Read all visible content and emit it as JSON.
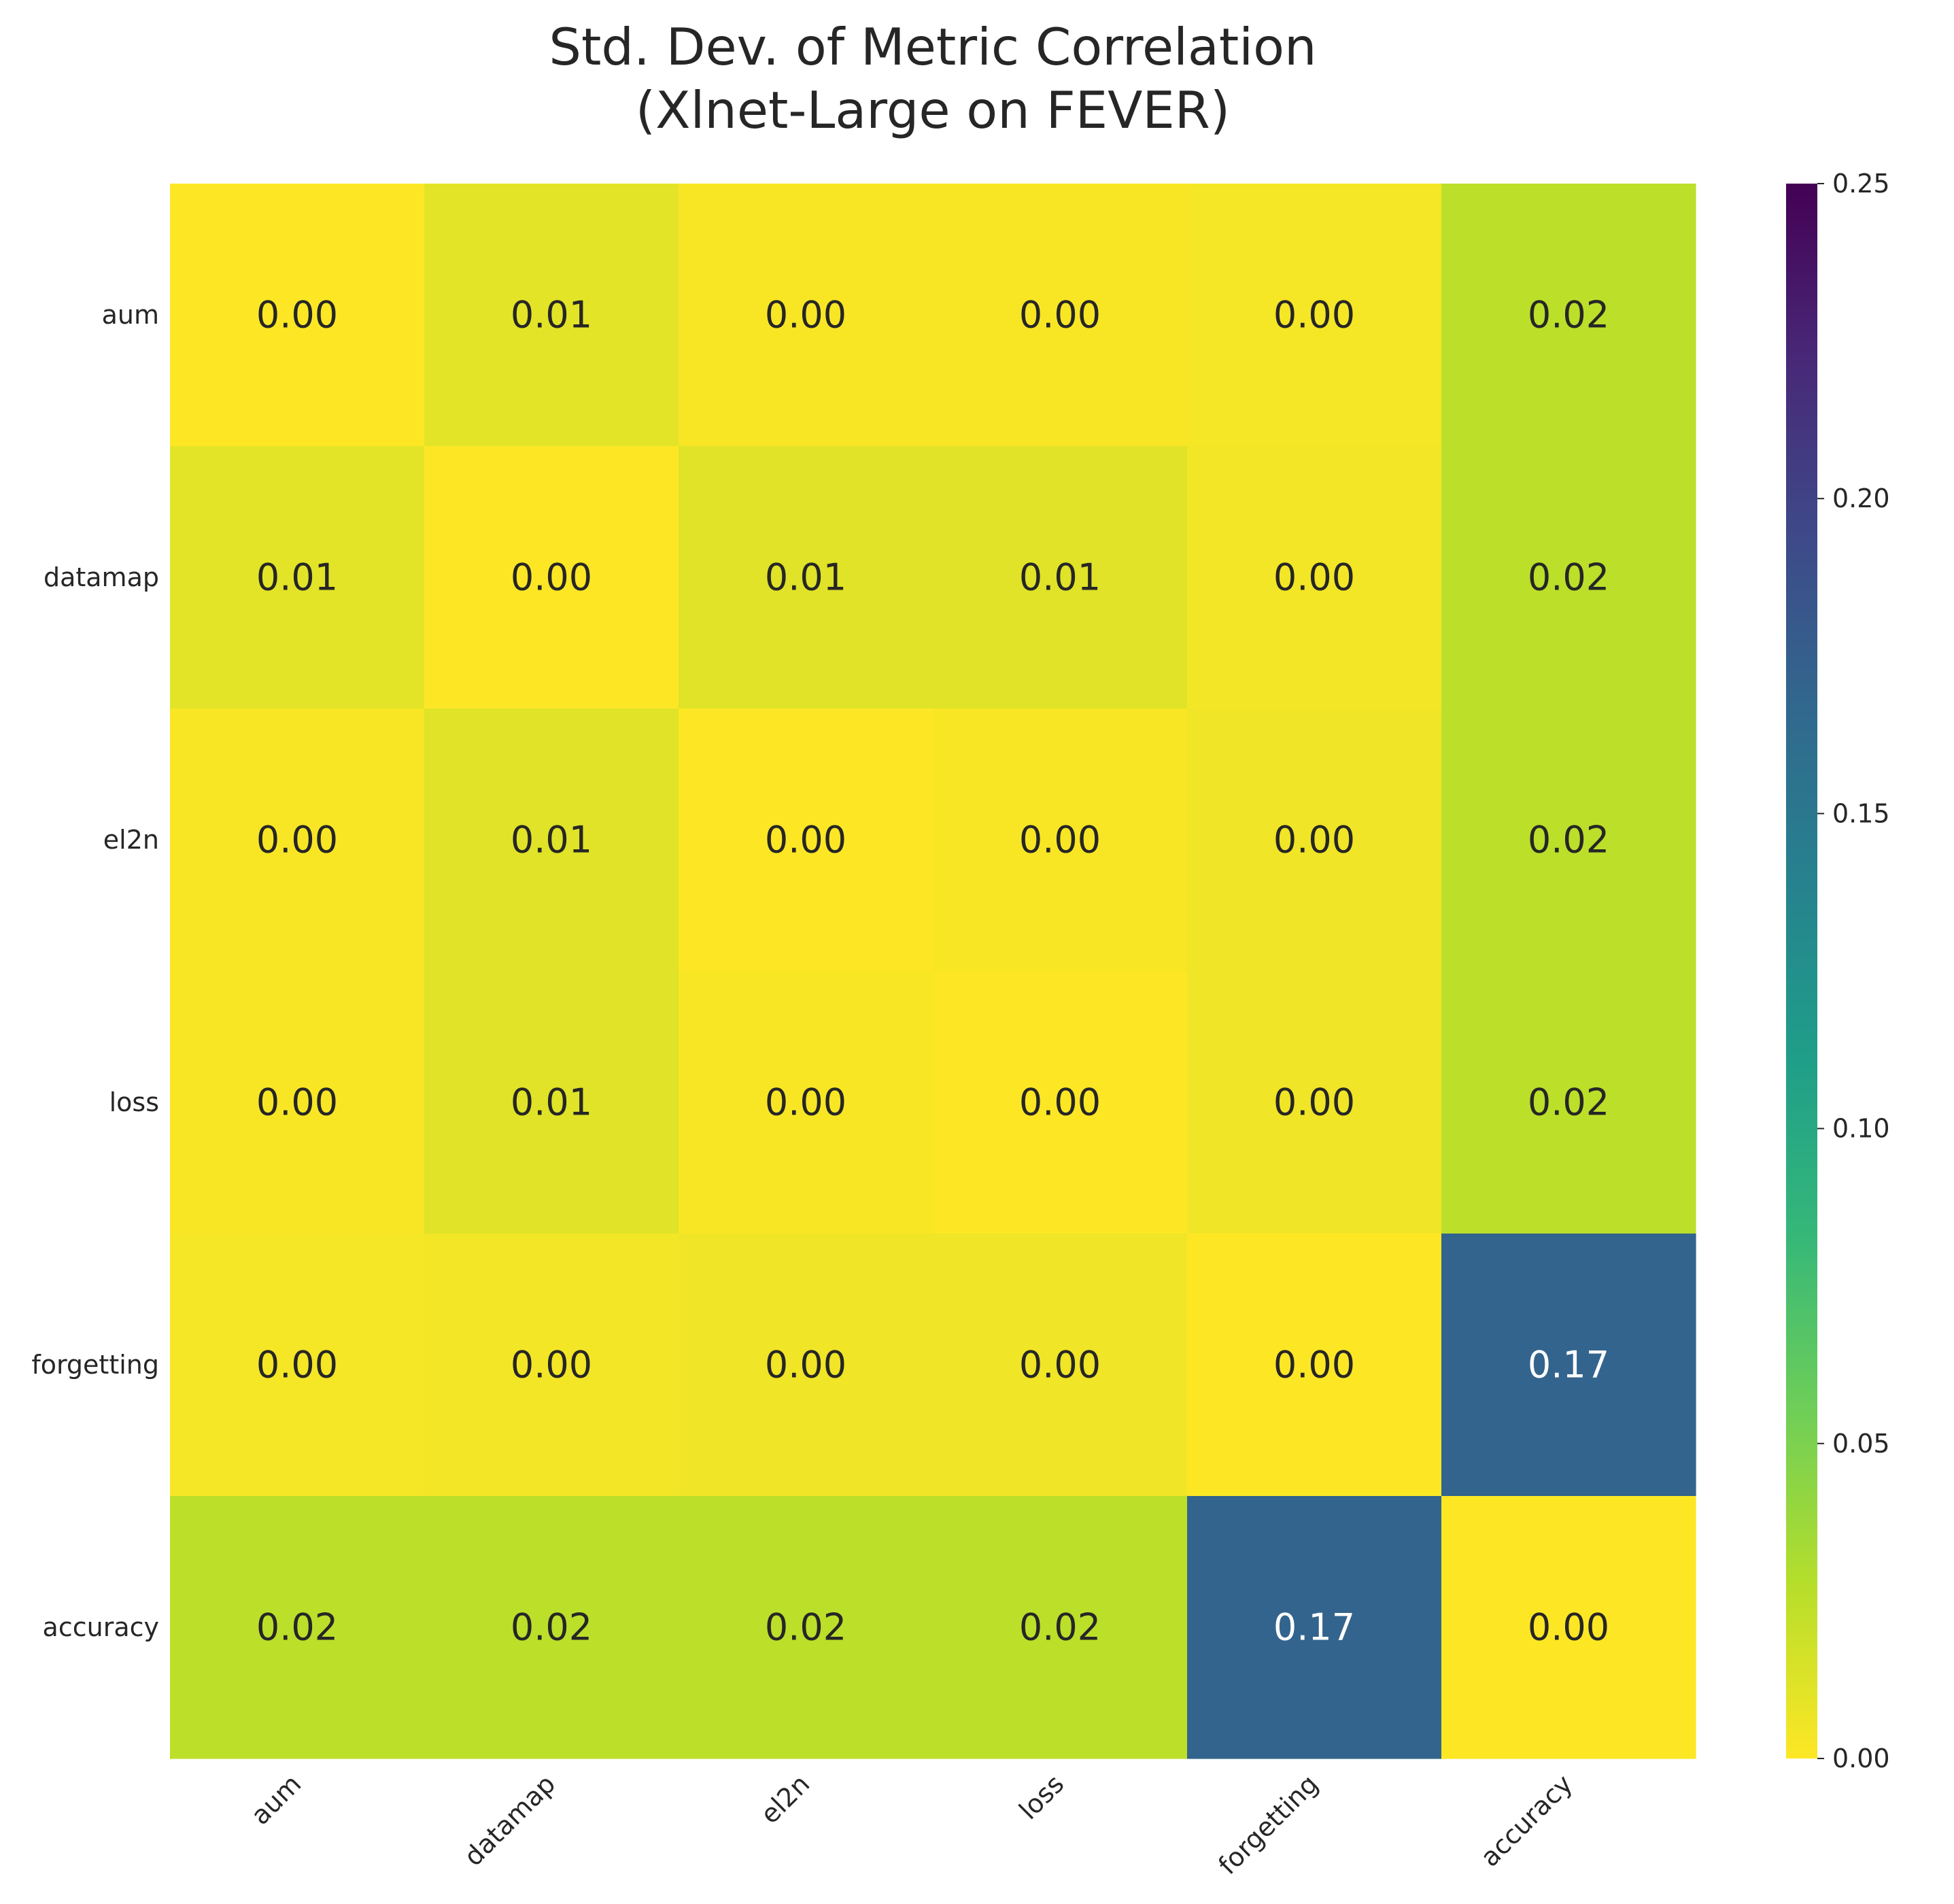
{
  "chart_data": {
    "type": "heatmap",
    "title": "Std. Dev. of Metric Correlation\n(Xlnet-Large on FEVER)",
    "xlabel": "",
    "ylabel": "",
    "x_categories": [
      "aum",
      "datamap",
      "el2n",
      "loss",
      "forgetting",
      "accuracy"
    ],
    "y_categories": [
      "aum",
      "datamap",
      "el2n",
      "loss",
      "forgetting",
      "accuracy"
    ],
    "values": [
      [
        0.0,
        0.01,
        0.002,
        0.002,
        0.003,
        0.025
      ],
      [
        0.01,
        0.0,
        0.011,
        0.011,
        0.004,
        0.025
      ],
      [
        0.002,
        0.011,
        0.0,
        0.002,
        0.005,
        0.025
      ],
      [
        0.002,
        0.011,
        0.002,
        0.0,
        0.005,
        0.025
      ],
      [
        0.003,
        0.004,
        0.005,
        0.005,
        0.0,
        0.17
      ],
      [
        0.025,
        0.025,
        0.025,
        0.025,
        0.17,
        0.0
      ]
    ],
    "value_labels": [
      [
        "0.00",
        "0.01",
        "0.00",
        "0.00",
        "0.00",
        "0.02"
      ],
      [
        "0.01",
        "0.00",
        "0.01",
        "0.01",
        "0.00",
        "0.02"
      ],
      [
        "0.00",
        "0.01",
        "0.00",
        "0.00",
        "0.00",
        "0.02"
      ],
      [
        "0.00",
        "0.01",
        "0.00",
        "0.00",
        "0.00",
        "0.02"
      ],
      [
        "0.00",
        "0.00",
        "0.00",
        "0.00",
        "0.00",
        "0.17"
      ],
      [
        "0.02",
        "0.02",
        "0.02",
        "0.02",
        "0.17",
        "0.00"
      ]
    ],
    "colormap": "viridis_r",
    "vmin": 0.0,
    "vmax": 0.25,
    "colorbar_ticks": [
      {
        "value": 0.0,
        "label": "0.00"
      },
      {
        "value": 0.05,
        "label": "0.05"
      },
      {
        "value": 0.1,
        "label": "0.10"
      },
      {
        "value": 0.15,
        "label": "0.15"
      },
      {
        "value": 0.2,
        "label": "0.20"
      },
      {
        "value": 0.25,
        "label": "0.25"
      }
    ],
    "grid": false,
    "legend": "colorbar-right"
  }
}
